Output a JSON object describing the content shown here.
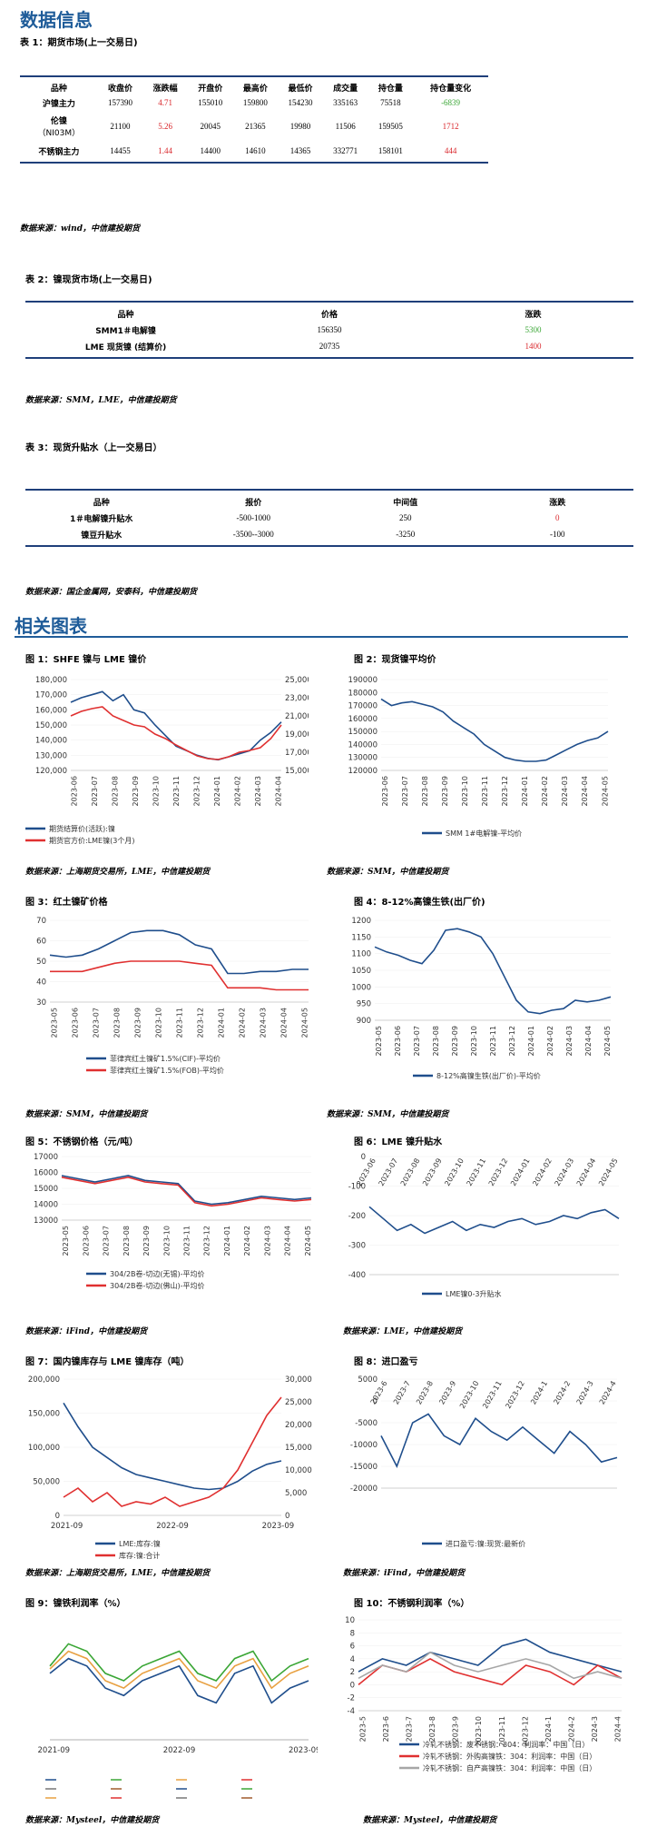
{
  "headings": {
    "data_info": "数据信息",
    "charts": "相关图表"
  },
  "table1": {
    "caption": "表 1：期货市场(上一交易日)",
    "headers": [
      "品种",
      "收盘价",
      "涨跌幅",
      "开盘价",
      "最高价",
      "最低价",
      "成交量",
      "持仓量",
      "持仓量变化"
    ],
    "rows": [
      {
        "name": "沪镍主力",
        "close": "157390",
        "chg": "4.71",
        "open": "155010",
        "high": "159800",
        "low": "154230",
        "vol": "335163",
        "oi": "75518",
        "oichg": "-6839",
        "chg_color": "red",
        "oichg_color": "green"
      },
      {
        "name": "伦镍",
        "name2": "（NI03M）",
        "close": "21100",
        "chg": "5.26",
        "open": "20045",
        "high": "21365",
        "low": "19980",
        "vol": "11506",
        "oi": "159505",
        "oichg": "1712",
        "chg_color": "red",
        "oichg_color": "red"
      },
      {
        "name": "不锈钢主力",
        "close": "14455",
        "chg": "1.44",
        "open": "14400",
        "high": "14610",
        "low": "14365",
        "vol": "332771",
        "oi": "158101",
        "oichg": "444",
        "chg_color": "red",
        "oichg_color": "red"
      }
    ],
    "source": "数据来源：wind，中信建投期货"
  },
  "table2": {
    "caption": "表 2：镍现货市场(上一交易日)",
    "headers": [
      "品种",
      "价格",
      "涨跌"
    ],
    "rows": [
      {
        "name": "SMM1＃电解镍",
        "price": "156350",
        "chg": "5300",
        "color": "green"
      },
      {
        "name": "LME 现货镍 (结算价)",
        "price": "20735",
        "chg": "1400",
        "color": "red"
      }
    ],
    "source": "数据来源：SMM，LME，中信建投期货"
  },
  "table3": {
    "caption": "表 3：现货升贴水（上一交易日）",
    "headers": [
      "品种",
      "报价",
      "中间值",
      "涨跌"
    ],
    "rows": [
      {
        "name": "1＃电解镍升贴水",
        "quote": "-500-1000",
        "mid": "250",
        "chg": "0",
        "color": "red"
      },
      {
        "name": "镍豆升贴水",
        "quote": "-3500--3000",
        "mid": "-3250",
        "chg": "-100",
        "color": "black"
      }
    ],
    "source": "数据来源：国企金属网，安泰科，中信建投期货"
  },
  "figures": [
    {
      "caption": "图 1：SHFE 镍与 LME 镍价",
      "legend": [
        "期货结算价(活跃):镍",
        "期货官方价:LME镍(3个月)"
      ],
      "source": "数据来源：上海期货交易所，LME，中信建投期货"
    },
    {
      "caption": "图 2：现货镍平均价",
      "legend": [
        "SMM 1#电解镍-平均价"
      ],
      "source": "数据来源：SMM，中信建投期货"
    },
    {
      "caption": "图 3：红土镍矿价格",
      "legend": [
        "菲律宾红土镍矿1.5%(CIF)-平均价",
        "菲律宾红土镍矿1.5%(FOB)-平均价"
      ],
      "source": "数据来源：SMM，中信建投期货"
    },
    {
      "caption": "图 4：8-12%高镍生铁(出厂价)",
      "legend": [
        "8-12%高镍生铁(出厂价)-平均价"
      ],
      "source": "数据来源：SMM，中信建投期货"
    },
    {
      "caption": "图 5：不锈钢价格（元/吨）",
      "legend": [
        "304/2B卷-切边(无锡)-平均价",
        "304/2B卷-切边(佛山)-平均价"
      ],
      "source": "数据来源：iFind，中信建投期货"
    },
    {
      "caption": "图 6：LME 镍升贴水",
      "legend": [
        "LME镍0-3升贴水"
      ],
      "source": "数据来源：LME，中信建投期货"
    },
    {
      "caption": "图 7：国内镍库存与 LME 镍库存（吨）",
      "legend": [
        "LME:库存:镍",
        "库存:镍:合计"
      ],
      "source": "数据来源：上海期货交易所，LME，中信建投期货"
    },
    {
      "caption": "图 8：进口盈亏",
      "legend": [
        "进口盈亏:镍:现货:最新价"
      ],
      "source": "数据来源：iFind，中信建投期货"
    },
    {
      "caption": "图 9：镍铁利润率（%）",
      "legend": [],
      "source": "数据来源：Mysteel，中信建投期货"
    },
    {
      "caption": "图 10：不锈钢利润率（%）",
      "legend": [
        "冷轧不锈钢：废不锈钢：304：利润率：中国（日）",
        "冷轧不锈钢：外购高镍铁：304：利润率：中国（日）",
        "冷轧不锈钢：自产高镍铁：304：利润率：中国（日）"
      ],
      "source": "数据来源：Mysteel，中信建投期货"
    }
  ],
  "chart_data": [
    {
      "type": "line",
      "id": "fig1",
      "x_ticks": [
        "2023-06",
        "2023-07",
        "2023-08",
        "2023-09",
        "2023-10",
        "2023-11",
        "2023-12",
        "2024-01",
        "2024-02",
        "2024-03",
        "2024-04"
      ],
      "ylim_left": [
        120000,
        180000
      ],
      "y_ticks_left": [
        "180,000",
        "170,000",
        "160,000",
        "150,000",
        "140,000",
        "130,000",
        "120,000"
      ],
      "ylim_right": [
        15000,
        25000
      ],
      "y_ticks_right": [
        "25,000",
        "23,000",
        "21,000",
        "19,000",
        "17,000",
        "15,000"
      ],
      "series": [
        {
          "name": "期货结算价(活跃):镍",
          "axis": "left",
          "color": "#1f4e8c",
          "values": [
            165000,
            168000,
            170000,
            172000,
            166000,
            170000,
            160000,
            158000,
            150000,
            143000,
            136000,
            133000,
            130000,
            128000,
            127000,
            129000,
            131000,
            133000,
            140000,
            145000,
            152000
          ]
        },
        {
          "name": "期货官方价:LME镍(3个月)",
          "axis": "right",
          "color": "#e03030",
          "values": [
            21000,
            21500,
            21800,
            22000,
            21000,
            20500,
            20000,
            19800,
            19000,
            18500,
            17800,
            17200,
            16600,
            16300,
            16200,
            16500,
            17000,
            17200,
            17500,
            18500,
            20000
          ]
        }
      ]
    },
    {
      "type": "line",
      "id": "fig2",
      "x_ticks": [
        "2023-06",
        "2023-07",
        "2023-08",
        "2023-09",
        "2023-10",
        "2023-11",
        "2023-12",
        "2024-01",
        "2024-02",
        "2024-03",
        "2024-04",
        "2024-05"
      ],
      "ylim": [
        120000,
        190000
      ],
      "y_ticks": [
        "190000",
        "180000",
        "170000",
        "160000",
        "150000",
        "140000",
        "130000",
        "120000"
      ],
      "series": [
        {
          "name": "SMM 1#电解镍-平均价",
          "color": "#1f4e8c",
          "values": [
            175000,
            170000,
            172000,
            173000,
            171000,
            169000,
            165000,
            158000,
            153000,
            148000,
            140000,
            135000,
            130000,
            128000,
            127000,
            127000,
            128000,
            132000,
            136000,
            140000,
            143000,
            145000,
            150000
          ]
        }
      ]
    },
    {
      "type": "line",
      "id": "fig3",
      "x_ticks": [
        "2023-05",
        "2023-06",
        "2023-07",
        "2023-08",
        "2023-09",
        "2023-10",
        "2023-11",
        "2023-12",
        "2024-01",
        "2024-02",
        "2024-03",
        "2024-04",
        "2024-05"
      ],
      "ylim": [
        30,
        70
      ],
      "y_ticks": [
        "70",
        "60",
        "50",
        "40",
        "30"
      ],
      "series": [
        {
          "name": "菲律宾红土镍矿1.5%(CIF)-平均价",
          "color": "#1f4e8c",
          "values": [
            53,
            52,
            53,
            56,
            60,
            64,
            65,
            65,
            63,
            58,
            56,
            44,
            44,
            45,
            45,
            46,
            46
          ]
        },
        {
          "name": "菲律宾红土镍矿1.5%(FOB)-平均价",
          "color": "#e03030",
          "values": [
            45,
            45,
            45,
            47,
            49,
            50,
            50,
            50,
            50,
            49,
            48,
            37,
            37,
            37,
            36,
            36,
            36
          ]
        }
      ]
    },
    {
      "type": "line",
      "id": "fig4",
      "x_ticks": [
        "2023-05",
        "2023-06",
        "2023-07",
        "2023-08",
        "2023-09",
        "2023-10",
        "2023-11",
        "2023-12",
        "2024-01",
        "2024-02",
        "2024-03",
        "2024-04",
        "2024-05"
      ],
      "ylim": [
        900,
        1200
      ],
      "y_ticks": [
        "1200",
        "1150",
        "1100",
        "1050",
        "1000",
        "950",
        "900"
      ],
      "series": [
        {
          "name": "8-12%高镍生铁(出厂价)-平均价",
          "color": "#1f4e8c",
          "values": [
            1120,
            1105,
            1095,
            1080,
            1070,
            1110,
            1170,
            1175,
            1165,
            1150,
            1100,
            1030,
            960,
            925,
            920,
            930,
            935,
            960,
            955,
            960,
            970
          ]
        }
      ]
    },
    {
      "type": "line",
      "id": "fig5",
      "x_ticks": [
        "2023-05",
        "2023-06",
        "2023-07",
        "2023-08",
        "2023-09",
        "2023-10",
        "2023-11",
        "2023-12",
        "2024-01",
        "2024-02",
        "2024-03",
        "2024-04",
        "2024-05"
      ],
      "ylim": [
        13000,
        17000
      ],
      "y_ticks": [
        "17000",
        "16000",
        "15000",
        "14000",
        "13000"
      ],
      "series": [
        {
          "name": "304/2B卷-切边(无锡)-平均价",
          "color": "#1f4e8c",
          "values": [
            15800,
            15600,
            15400,
            15600,
            15800,
            15500,
            15400,
            15300,
            14200,
            14000,
            14100,
            14300,
            14500,
            14400,
            14300,
            14400
          ]
        },
        {
          "name": "304/2B卷-切边(佛山)-平均价",
          "color": "#e03030",
          "values": [
            15700,
            15500,
            15300,
            15500,
            15700,
            15400,
            15300,
            15200,
            14100,
            13900,
            14000,
            14200,
            14400,
            14300,
            14200,
            14300
          ]
        }
      ]
    },
    {
      "type": "line",
      "id": "fig6",
      "x_ticks": [
        "2023-06",
        "2023-07",
        "2023-08",
        "2023-09",
        "2023-10",
        "2023-11",
        "2023-12",
        "2024-01",
        "2024-02",
        "2024-03",
        "2024-04",
        "2024-05"
      ],
      "ylim": [
        -400,
        0
      ],
      "y_ticks": [
        "0",
        "-100",
        "-200",
        "-300",
        "-400"
      ],
      "series": [
        {
          "name": "LME镍0-3升贴水",
          "color": "#1f4e8c",
          "values": [
            -170,
            -210,
            -250,
            -230,
            -260,
            -240,
            -220,
            -250,
            -230,
            -240,
            -220,
            -210,
            -230,
            -220,
            -200,
            -210,
            -190,
            -180,
            -210
          ]
        }
      ]
    },
    {
      "type": "line",
      "id": "fig7",
      "x_ticks": [
        "2021-09",
        "2022-09",
        "2023-09"
      ],
      "ylim_left": [
        0,
        200000
      ],
      "y_ticks_left": [
        "200,000",
        "150,000",
        "100,000",
        "50,000",
        "0"
      ],
      "ylim_right": [
        0,
        30000
      ],
      "y_ticks_right": [
        "30,000",
        "25,000",
        "20,000",
        "15,000",
        "10,000",
        "5,000",
        "0"
      ],
      "series": [
        {
          "name": "LME:库存:镍",
          "axis": "left",
          "color": "#1f4e8c",
          "values": [
            165000,
            130000,
            100000,
            85000,
            70000,
            60000,
            55000,
            50000,
            45000,
            40000,
            38000,
            40000,
            50000,
            65000,
            75000,
            80000
          ]
        },
        {
          "name": "库存:镍:合计",
          "axis": "right",
          "color": "#e03030",
          "values": [
            4000,
            6000,
            3000,
            5000,
            2000,
            3000,
            2500,
            4000,
            2000,
            3000,
            4000,
            6000,
            10000,
            16000,
            22000,
            26000
          ]
        }
      ]
    },
    {
      "type": "line",
      "id": "fig8",
      "x_ticks": [
        "2023-6",
        "2023-7",
        "2023-8",
        "2023-9",
        "2023-10",
        "2023-11",
        "2023-12",
        "2024-1",
        "2024-2",
        "2024-3",
        "2024-4"
      ],
      "ylim": [
        -20000,
        5000
      ],
      "y_ticks": [
        "5000",
        "0",
        "-5000",
        "-10000",
        "-15000",
        "-20000"
      ],
      "series": [
        {
          "name": "进口盈亏:镍:现货:最新价",
          "color": "#1f4e8c",
          "values": [
            -8000,
            -15000,
            -5000,
            -3000,
            -8000,
            -10000,
            -4000,
            -7000,
            -9000,
            -6000,
            -9000,
            -12000,
            -7000,
            -10000,
            -14000,
            -13000
          ]
        }
      ]
    },
    {
      "type": "line",
      "id": "fig9",
      "x_ticks": [
        "2021-09",
        "2022-09",
        "2023-09"
      ],
      "ylim": [
        -40,
        40
      ],
      "series": [
        {
          "name": "",
          "color": "#1f4e8c",
          "values": [
            5,
            15,
            10,
            -5,
            -10,
            0,
            5,
            10,
            -10,
            -15,
            5,
            10,
            -15,
            -5,
            0
          ]
        },
        {
          "name": "",
          "color": "#3aa635",
          "values": [
            10,
            25,
            20,
            5,
            0,
            10,
            15,
            20,
            5,
            0,
            15,
            20,
            0,
            10,
            15
          ]
        },
        {
          "name": "",
          "color": "#e8a040",
          "values": [
            8,
            20,
            15,
            0,
            -5,
            5,
            10,
            15,
            0,
            -5,
            10,
            15,
            -5,
            5,
            10
          ]
        }
      ]
    },
    {
      "type": "line",
      "id": "fig10",
      "x_ticks": [
        "2023-5",
        "2023-6",
        "2023-7",
        "2023-8",
        "2023-9",
        "2023-10",
        "2023-11",
        "2023-12",
        "2024-1",
        "2024-2",
        "2024-3",
        "2024-4"
      ],
      "ylim": [
        -4,
        10
      ],
      "y_ticks": [
        "10",
        "8",
        "6",
        "4",
        "2",
        "0",
        "-2",
        "-4"
      ],
      "series": [
        {
          "name": "冷轧不锈钢：废不锈钢：304：利润率：中国（日）",
          "color": "#1f4e8c",
          "values": [
            2,
            4,
            3,
            5,
            4,
            3,
            6,
            7,
            5,
            4,
            3,
            2
          ]
        },
        {
          "name": "冷轧不锈钢：外购高镍铁：304：利润率：中国（日）",
          "color": "#e03030",
          "values": [
            0,
            3,
            2,
            4,
            2,
            1,
            0,
            3,
            2,
            0,
            3,
            1
          ]
        },
        {
          "name": "冷轧不锈钢：自产高镍铁：304：利润率：中国（日）",
          "color": "#a6a6a6",
          "values": [
            1,
            3,
            2,
            5,
            3,
            2,
            3,
            4,
            3,
            1,
            2,
            1
          ]
        }
      ]
    }
  ]
}
